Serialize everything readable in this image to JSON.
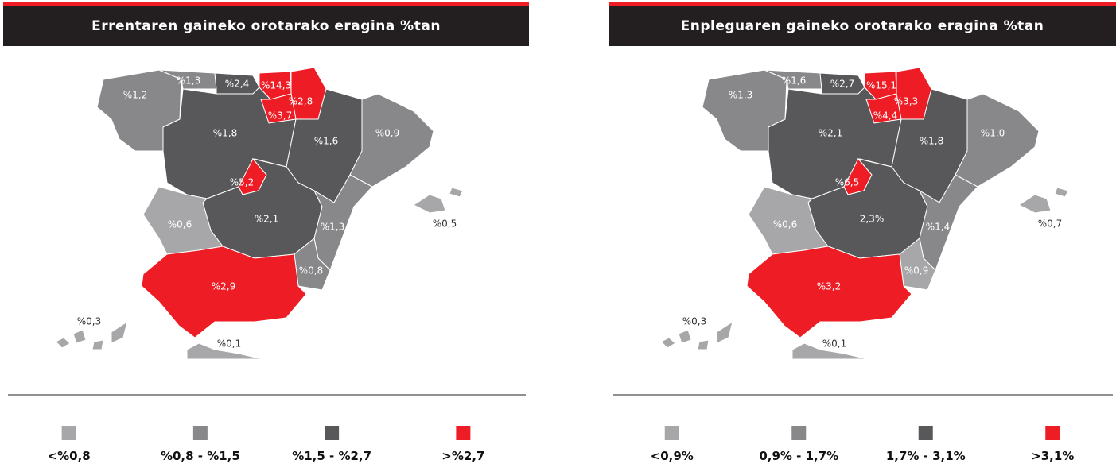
{
  "panels": [
    {
      "title": "Errentaren gaineko orotarako eragina %tan",
      "regions": [
        "%1,2",
        "%1,3",
        "%2,4",
        "%14,3",
        "%2,8",
        "%3,7",
        "%1,8",
        "%1,6",
        "%0,9",
        "%5,2",
        "%2,1",
        "%1,3",
        "%0,8",
        "%0,6",
        "%2,9",
        "%0,5",
        "%0,3",
        "%0,1"
      ],
      "legend": [
        {
          "label": "<%0,8",
          "color": "#a7a7a9"
        },
        {
          "label": "%0,8 - %1,5",
          "color": "#88888a"
        },
        {
          "label": "%1,5 - %2,7",
          "color": "#58585a"
        },
        {
          "label": ">%2,7",
          "color": "#ee1c25"
        }
      ]
    },
    {
      "title": "Enpleguaren gaineko orotarako eragina %tan",
      "regions": [
        "%1,3",
        "%1,6",
        "%2,7",
        "%15,1",
        "%3,3",
        "%4,4",
        "%2,1",
        "%1,8",
        "%1,0",
        "%6,5",
        "2,3%",
        "%1,4",
        "%0,9",
        "%0,6",
        "%3,2",
        "%0,7",
        "%0,3",
        "%0,1"
      ],
      "legend": [
        {
          "label": "<0,9%",
          "color": "#a7a7a9"
        },
        {
          "label": "0,9% - 1,7%",
          "color": "#88888a"
        },
        {
          "label": "1,7% - 3,1%",
          "color": "#58585a"
        },
        {
          "label": ">3,1%",
          "color": "#ee1c25"
        }
      ]
    }
  ]
}
